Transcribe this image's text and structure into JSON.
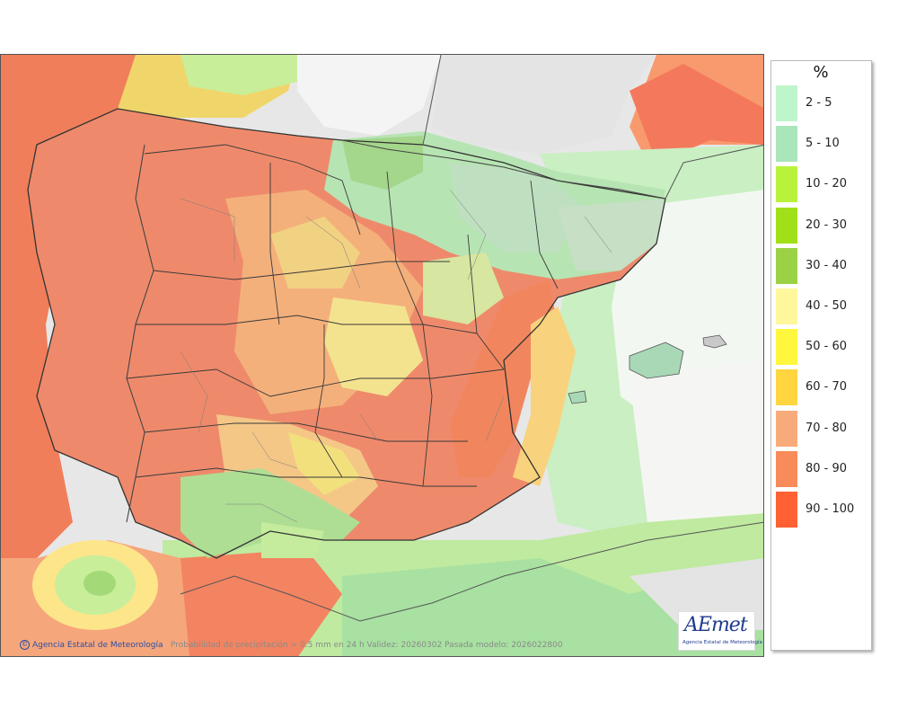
{
  "legend": {
    "title": "%",
    "items": [
      {
        "label": "2 - 5",
        "color": "#bff5cb"
      },
      {
        "label": "5 - 10",
        "color": "#a9e6ba"
      },
      {
        "label": "10 - 20",
        "color": "#b9f23b"
      },
      {
        "label": "20 - 30",
        "color": "#a1e019"
      },
      {
        "label": "30 - 40",
        "color": "#9bd245"
      },
      {
        "label": "40 - 50",
        "color": "#fff79b"
      },
      {
        "label": "50 - 60",
        "color": "#fff73d"
      },
      {
        "label": "60 - 70",
        "color": "#ffd540"
      },
      {
        "label": "70 - 80",
        "color": "#f8ab7a"
      },
      {
        "label": "80 - 90",
        "color": "#f98a5a"
      },
      {
        "label": "90 - 100",
        "color": "#ff6133"
      }
    ]
  },
  "credit": "Agencia Estatal de Meteorología",
  "credit_icon": "copyright-icon",
  "caption": "Probabilidad de precipitación > 0.5 mm en 24 h Validez: 20260302 Pasada modelo: 2026022800",
  "logo": {
    "text": "AEmet",
    "subtitle": "Agencia Estatal de Meteorología"
  },
  "colors": {
    "sea_far": "#e6e6e6",
    "land_high": "#f08866",
    "land_dry": "#b9e3b6"
  }
}
